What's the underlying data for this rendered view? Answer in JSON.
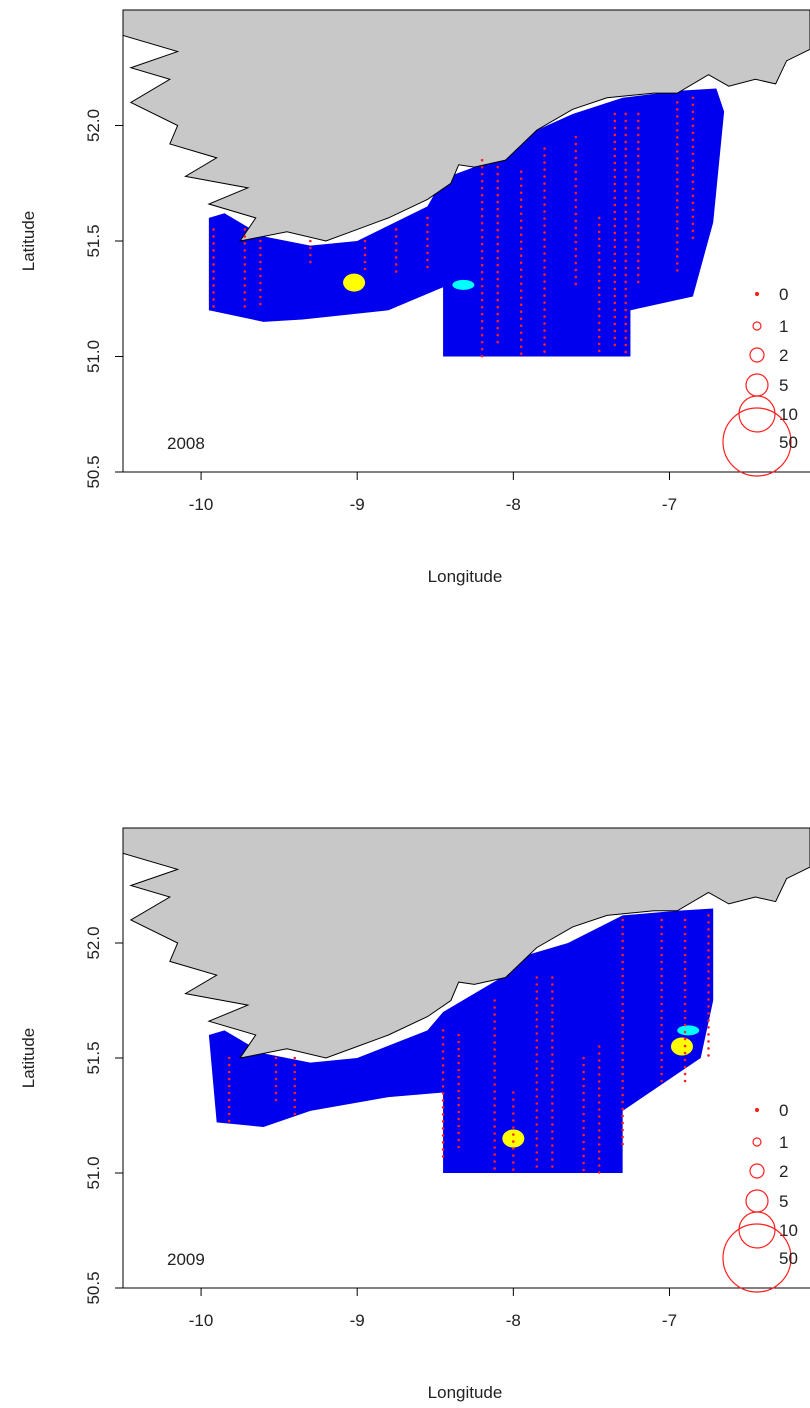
{
  "colors": {
    "land": "#c8c8c8",
    "survey_area": "#0000ee",
    "sample_points": "#ff2020",
    "hotspot_yellow": "#ffff00",
    "hotspot_cyan": "#00ffff",
    "background": "#ffffff"
  },
  "chart_data": [
    {
      "type": "scatter",
      "year_label": "2008",
      "xlabel": "Longitude",
      "ylabel": "Latitude",
      "xlim": [
        -10.5,
        -6.1
      ],
      "ylim": [
        50.5,
        52.5
      ],
      "x_ticks": [
        -10,
        -9,
        -8,
        -7
      ],
      "x_tick_labels": [
        "-10",
        "-9",
        "-8",
        "-7"
      ],
      "y_ticks": [
        50.5,
        51.0,
        51.5,
        52.0
      ],
      "y_tick_labels": [
        "50.5",
        "51.0",
        "51.5",
        "52.0"
      ],
      "legend": {
        "placement": "bottom-right",
        "labels": [
          "0",
          "1",
          "2",
          "5",
          "10",
          "50"
        ]
      },
      "grid": false,
      "hotspots": [
        {
          "lon": -9.02,
          "lat": 51.32,
          "color": "yellow"
        },
        {
          "lon": -8.32,
          "lat": 51.31,
          "color": "cyan"
        }
      ]
    },
    {
      "type": "scatter",
      "year_label": "2009",
      "xlabel": "Longitude",
      "ylabel": "Latitude",
      "xlim": [
        -10.5,
        -6.1
      ],
      "ylim": [
        50.5,
        52.5
      ],
      "x_ticks": [
        -10,
        -9,
        -8,
        -7
      ],
      "x_tick_labels": [
        "-10",
        "-9",
        "-8",
        "-7"
      ],
      "y_ticks": [
        50.5,
        51.0,
        51.5,
        52.0
      ],
      "y_tick_labels": [
        "50.5",
        "51.0",
        "51.5",
        "52.0"
      ],
      "legend": {
        "placement": "bottom-right",
        "labels": [
          "0",
          "1",
          "2",
          "5",
          "10",
          "50"
        ]
      },
      "grid": false,
      "hotspots": [
        {
          "lon": -8.0,
          "lat": 51.15,
          "color": "yellow"
        },
        {
          "lon": -6.92,
          "lat": 51.55,
          "color": "yellow"
        },
        {
          "lon": -6.88,
          "lat": 51.62,
          "color": "cyan"
        }
      ]
    }
  ]
}
